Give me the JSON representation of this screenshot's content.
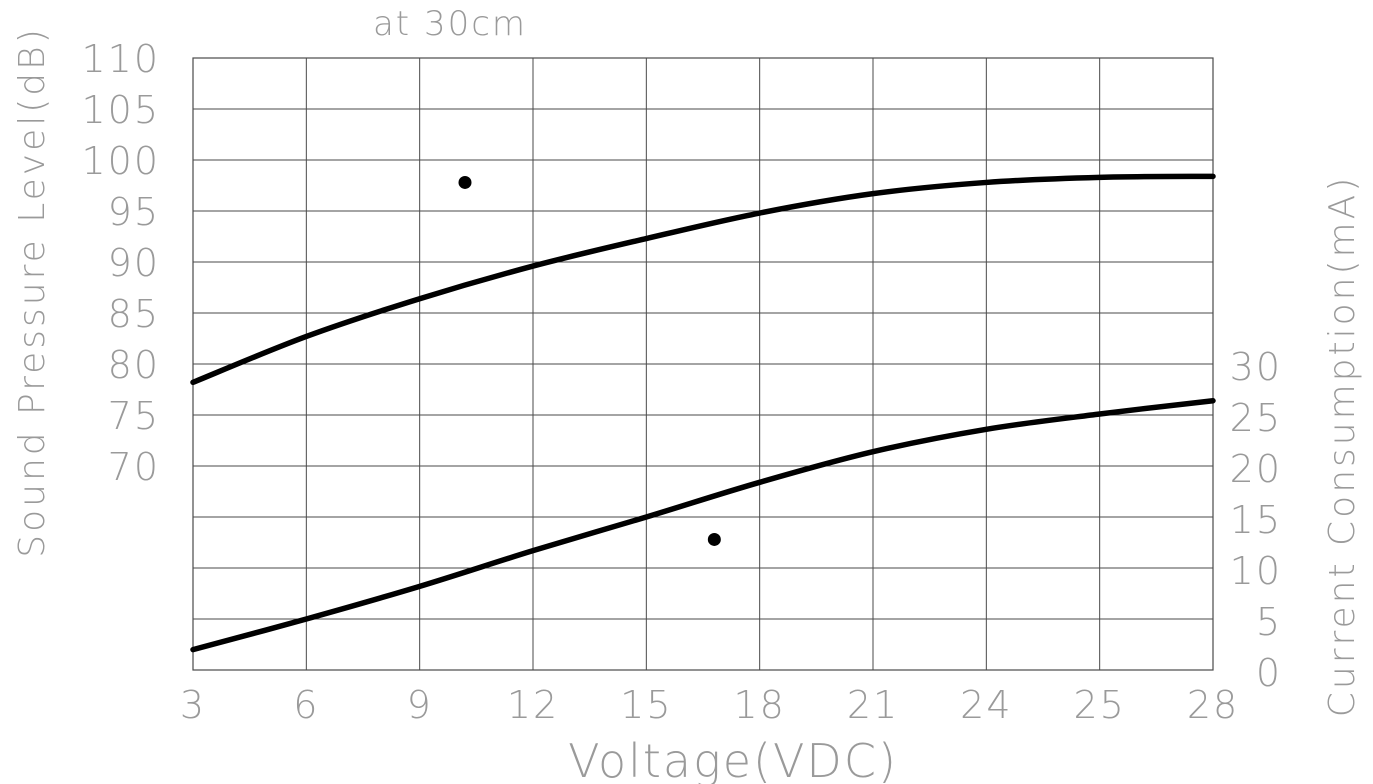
{
  "chart_data": {
    "type": "line",
    "title": "at 30cm",
    "xlabel": "Voltage(VDC)",
    "ylabel_left": "Sound Pressure Level(dB)",
    "ylabel_right": "Current Consumption(mA)",
    "x_tick_labels": [
      "3",
      "6",
      "9",
      "12",
      "15",
      "18",
      "21",
      "24",
      "25",
      "28"
    ],
    "y_left_ticks": [
      110,
      105,
      100,
      95,
      90,
      85,
      80,
      75,
      70
    ],
    "y_right_ticks": [
      30,
      25,
      20,
      15,
      10,
      5,
      0
    ],
    "grid": true,
    "series": [
      {
        "axis": "left",
        "marker": "upper-dot",
        "x_index": [
          0,
          1,
          2,
          3,
          4,
          5,
          6,
          7,
          8,
          9
        ],
        "values": [
          78.2,
          82.7,
          86.4,
          89.6,
          92.3,
          94.8,
          96.7,
          97.8,
          98.3,
          98.4
        ]
      },
      {
        "axis": "right",
        "marker": "lower-dot",
        "x_index": [
          0,
          1,
          2,
          3,
          4,
          5,
          6,
          7,
          8,
          9
        ],
        "values": [
          2.0,
          5.0,
          8.2,
          11.7,
          15.0,
          18.4,
          21.4,
          23.6,
          25.1,
          26.4
        ]
      }
    ],
    "markers": [
      {
        "name": "upper-dot",
        "axis": "left",
        "x_index": 2.4,
        "value": 97.8
      },
      {
        "name": "lower-dot",
        "axis": "right",
        "x_index": 4.6,
        "value": 12.8
      }
    ]
  }
}
